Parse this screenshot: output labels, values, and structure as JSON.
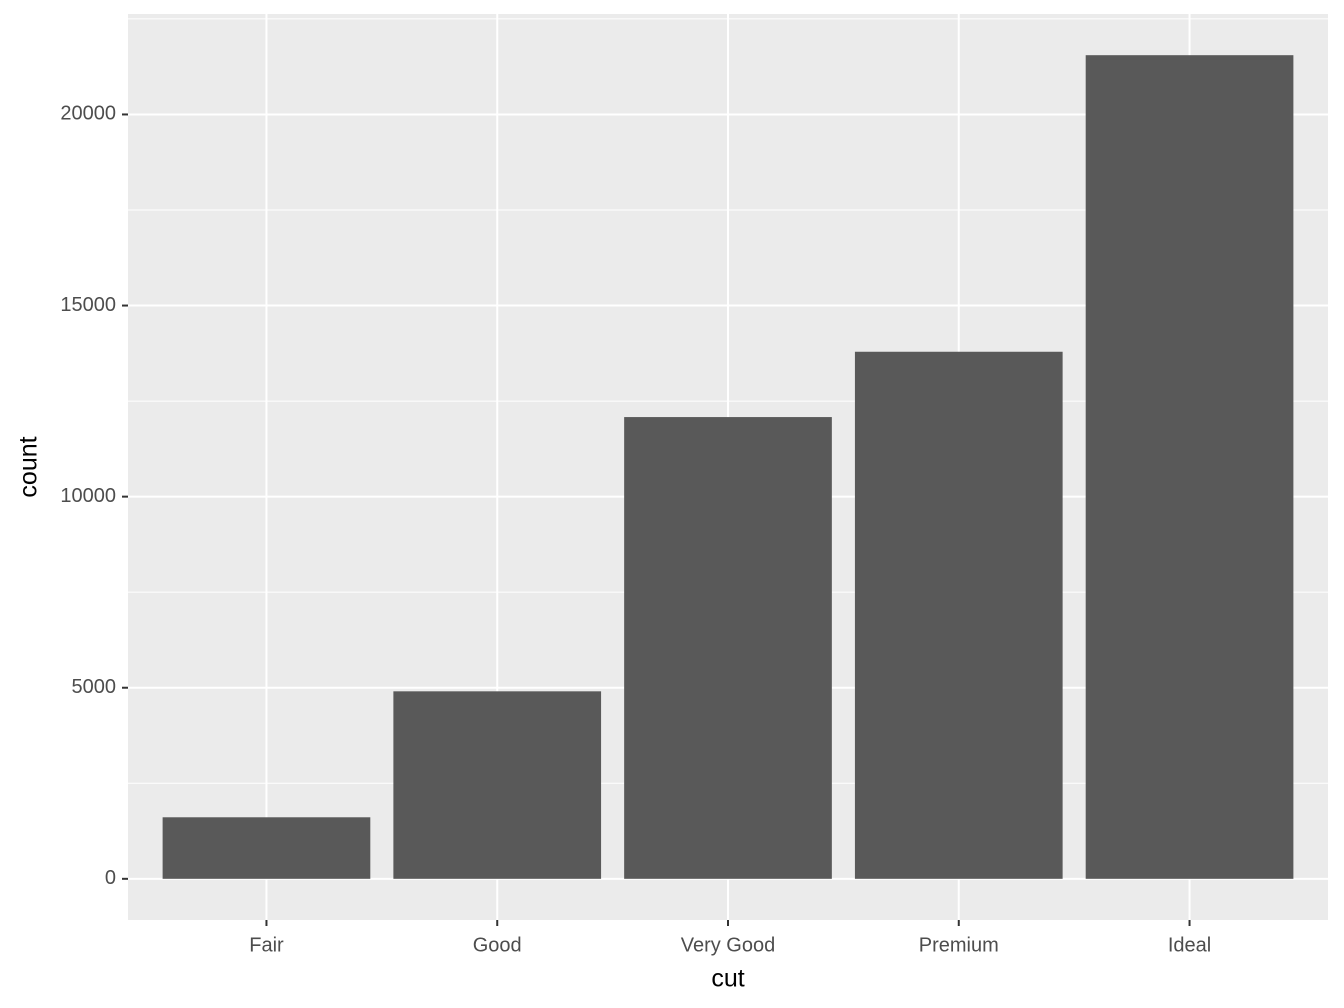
{
  "chart_data": {
    "type": "bar",
    "x_label": "cut",
    "y_label": "count",
    "categories": [
      "Fair",
      "Good",
      "Very Good",
      "Premium",
      "Ideal"
    ],
    "values": [
      1610,
      4906,
      12082,
      13791,
      21551
    ],
    "color": "#595959",
    "ylim": [
      -1077.55,
      22628.55
    ],
    "yticks": [
      0,
      5000,
      10000,
      15000,
      20000
    ],
    "minor_yticks": [
      2500,
      7500,
      12500,
      17500,
      22500
    ],
    "grid": true
  }
}
